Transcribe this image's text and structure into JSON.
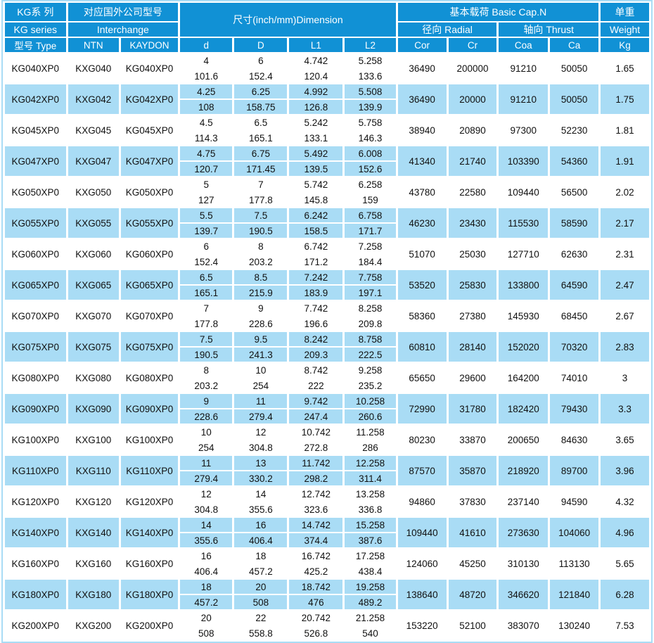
{
  "table": {
    "header": {
      "series": {
        "zh": "KG系 列",
        "en": "KG series",
        "type_label": "型号 Type"
      },
      "interchange": {
        "zh": "对应国外公司型号",
        "en": "Interchange",
        "ntn": "NTN",
        "kaydon": "KAYDON"
      },
      "dimension": {
        "title": "尺寸(inch/mm)Dimension",
        "cols": {
          "d": "d",
          "D": "D",
          "L1": "L1",
          "L2": "L2"
        }
      },
      "capacity": {
        "title": "基本载荷 Basic Cap.N",
        "radial": "径向 Radial",
        "thrust": "轴向 Thrust",
        "cols": {
          "cor": "Cor",
          "cr": "Cr",
          "coa": "Coa",
          "ca": "Ca"
        }
      },
      "weight": {
        "zh": "单重",
        "en": "Weight",
        "unit": "Kg"
      }
    },
    "rows": [
      {
        "type": "KG040XP0",
        "ntn": "KXG040",
        "kaydon": "KG040XP0",
        "d": [
          "4",
          "101.6"
        ],
        "D": [
          "6",
          "152.4"
        ],
        "L1": [
          "4.742",
          "120.4"
        ],
        "L2": [
          "5.258",
          "133.6"
        ],
        "cor": "36490",
        "cr": "200000",
        "coa": "91210",
        "ca": "50050",
        "kg": "1.65"
      },
      {
        "type": "KG042XP0",
        "ntn": "KXG042",
        "kaydon": "KG042XP0",
        "d": [
          "4.25",
          "108"
        ],
        "D": [
          "6.25",
          "158.75"
        ],
        "L1": [
          "4.992",
          "126.8"
        ],
        "L2": [
          "5.508",
          "139.9"
        ],
        "cor": "36490",
        "cr": "20000",
        "coa": "91210",
        "ca": "50050",
        "kg": "1.75"
      },
      {
        "type": "KG045XP0",
        "ntn": "KXG045",
        "kaydon": "KG045XP0",
        "d": [
          "4.5",
          "114.3"
        ],
        "D": [
          "6.5",
          "165.1"
        ],
        "L1": [
          "5.242",
          "133.1"
        ],
        "L2": [
          "5.758",
          "146.3"
        ],
        "cor": "38940",
        "cr": "20890",
        "coa": "97300",
        "ca": "52230",
        "kg": "1.81"
      },
      {
        "type": "KG047XP0",
        "ntn": "KXG047",
        "kaydon": "KG047XP0",
        "d": [
          "4.75",
          "120.7"
        ],
        "D": [
          "6.75",
          "171.45"
        ],
        "L1": [
          "5.492",
          "139.5"
        ],
        "L2": [
          "6.008",
          "152.6"
        ],
        "cor": "41340",
        "cr": "21740",
        "coa": "103390",
        "ca": "54360",
        "kg": "1.91"
      },
      {
        "type": "KG050XP0",
        "ntn": "KXG050",
        "kaydon": "KG050XP0",
        "d": [
          "5",
          "127"
        ],
        "D": [
          "7",
          "177.8"
        ],
        "L1": [
          "5.742",
          "145.8"
        ],
        "L2": [
          "6.258",
          "159"
        ],
        "cor": "43780",
        "cr": "22580",
        "coa": "109440",
        "ca": "56500",
        "kg": "2.02"
      },
      {
        "type": "KG055XP0",
        "ntn": "KXG055",
        "kaydon": "KG055XP0",
        "d": [
          "5.5",
          "139.7"
        ],
        "D": [
          "7.5",
          "190.5"
        ],
        "L1": [
          "6.242",
          "158.5"
        ],
        "L2": [
          "6.758",
          "171.7"
        ],
        "cor": "46230",
        "cr": "23430",
        "coa": "115530",
        "ca": "58590",
        "kg": "2.17"
      },
      {
        "type": "KG060XP0",
        "ntn": "KXG060",
        "kaydon": "KG060XP0",
        "d": [
          "6",
          "152.4"
        ],
        "D": [
          "8",
          "203.2"
        ],
        "L1": [
          "6.742",
          "171.2"
        ],
        "L2": [
          "7.258",
          "184.4"
        ],
        "cor": "51070",
        "cr": "25030",
        "coa": "127710",
        "ca": "62630",
        "kg": "2.31"
      },
      {
        "type": "KG065XP0",
        "ntn": "KXG065",
        "kaydon": "KG065XP0",
        "d": [
          "6.5",
          "165.1"
        ],
        "D": [
          "8.5",
          "215.9"
        ],
        "L1": [
          "7.242",
          "183.9"
        ],
        "L2": [
          "7.758",
          "197.1"
        ],
        "cor": "53520",
        "cr": "25830",
        "coa": "133800",
        "ca": "64590",
        "kg": "2.47"
      },
      {
        "type": "KG070XP0",
        "ntn": "KXG070",
        "kaydon": "KG070XP0",
        "d": [
          "7",
          "177.8"
        ],
        "D": [
          "9",
          "228.6"
        ],
        "L1": [
          "7.742",
          "196.6"
        ],
        "L2": [
          "8.258",
          "209.8"
        ],
        "cor": "58360",
        "cr": "27380",
        "coa": "145930",
        "ca": "68450",
        "kg": "2.67"
      },
      {
        "type": "KG075XP0",
        "ntn": "KXG075",
        "kaydon": "KG075XP0",
        "d": [
          "7.5",
          "190.5"
        ],
        "D": [
          "9.5",
          "241.3"
        ],
        "L1": [
          "8.242",
          "209.3"
        ],
        "L2": [
          "8.758",
          "222.5"
        ],
        "cor": "60810",
        "cr": "28140",
        "coa": "152020",
        "ca": "70320",
        "kg": "2.83"
      },
      {
        "type": "KG080XP0",
        "ntn": "KXG080",
        "kaydon": "KG080XP0",
        "d": [
          "8",
          "203.2"
        ],
        "D": [
          "10",
          "254"
        ],
        "L1": [
          "8.742",
          "222"
        ],
        "L2": [
          "9.258",
          "235.2"
        ],
        "cor": "65650",
        "cr": "29600",
        "coa": "164200",
        "ca": "74010",
        "kg": "3"
      },
      {
        "type": "KG090XP0",
        "ntn": "KXG090",
        "kaydon": "KG090XP0",
        "d": [
          "9",
          "228.6"
        ],
        "D": [
          "11",
          "279.4"
        ],
        "L1": [
          "9.742",
          "247.4"
        ],
        "L2": [
          "10.258",
          "260.6"
        ],
        "cor": "72990",
        "cr": "31780",
        "coa": "182420",
        "ca": "79430",
        "kg": "3.3"
      },
      {
        "type": "KG100XP0",
        "ntn": "KXG100",
        "kaydon": "KG100XP0",
        "d": [
          "10",
          "254"
        ],
        "D": [
          "12",
          "304.8"
        ],
        "L1": [
          "10.742",
          "272.8"
        ],
        "L2": [
          "11.258",
          "286"
        ],
        "cor": "80230",
        "cr": "33870",
        "coa": "200650",
        "ca": "84630",
        "kg": "3.65"
      },
      {
        "type": "KG110XP0",
        "ntn": "KXG110",
        "kaydon": "KG110XP0",
        "d": [
          "11",
          "279.4"
        ],
        "D": [
          "13",
          "330.2"
        ],
        "L1": [
          "11.742",
          "298.2"
        ],
        "L2": [
          "12.258",
          "311.4"
        ],
        "cor": "87570",
        "cr": "35870",
        "coa": "218920",
        "ca": "89700",
        "kg": "3.96"
      },
      {
        "type": "KG120XP0",
        "ntn": "KXG120",
        "kaydon": "KG120XP0",
        "d": [
          "12",
          "304.8"
        ],
        "D": [
          "14",
          "355.6"
        ],
        "L1": [
          "12.742",
          "323.6"
        ],
        "L2": [
          "13.258",
          "336.8"
        ],
        "cor": "94860",
        "cr": "37830",
        "coa": "237140",
        "ca": "94590",
        "kg": "4.32"
      },
      {
        "type": "KG140XP0",
        "ntn": "KXG140",
        "kaydon": "KG140XP0",
        "d": [
          "14",
          "355.6"
        ],
        "D": [
          "16",
          "406.4"
        ],
        "L1": [
          "14.742",
          "374.4"
        ],
        "L2": [
          "15.258",
          "387.6"
        ],
        "cor": "109440",
        "cr": "41610",
        "coa": "273630",
        "ca": "104060",
        "kg": "4.96"
      },
      {
        "type": "KG160XP0",
        "ntn": "KXG160",
        "kaydon": "KG160XP0",
        "d": [
          "16",
          "406.4"
        ],
        "D": [
          "18",
          "457.2"
        ],
        "L1": [
          "16.742",
          "425.2"
        ],
        "L2": [
          "17.258",
          "438.4"
        ],
        "cor": "124060",
        "cr": "45250",
        "coa": "310130",
        "ca": "113130",
        "kg": "5.65"
      },
      {
        "type": "KG180XP0",
        "ntn": "KXG180",
        "kaydon": "KG180XP0",
        "d": [
          "18",
          "457.2"
        ],
        "D": [
          "20",
          "508"
        ],
        "L1": [
          "18.742",
          "476"
        ],
        "L2": [
          "19.258",
          "489.2"
        ],
        "cor": "138640",
        "cr": "48720",
        "coa": "346620",
        "ca": "121840",
        "kg": "6.28"
      },
      {
        "type": "KG200XP0",
        "ntn": "KXG200",
        "kaydon": "KG200XP0",
        "d": [
          "20",
          "508"
        ],
        "D": [
          "22",
          "558.8"
        ],
        "L1": [
          "20.742",
          "526.8"
        ],
        "L2": [
          "21.258",
          "540"
        ],
        "cor": "153220",
        "cr": "52100",
        "coa": "383070",
        "ca": "130240",
        "kg": "7.53"
      }
    ]
  },
  "colors": {
    "header_blue": "#1191d5",
    "row_light_blue": "#a9dcf5",
    "frame_light_blue": "#a9dcf5",
    "text_dark": "#111111",
    "header_text": "#ffffff"
  }
}
